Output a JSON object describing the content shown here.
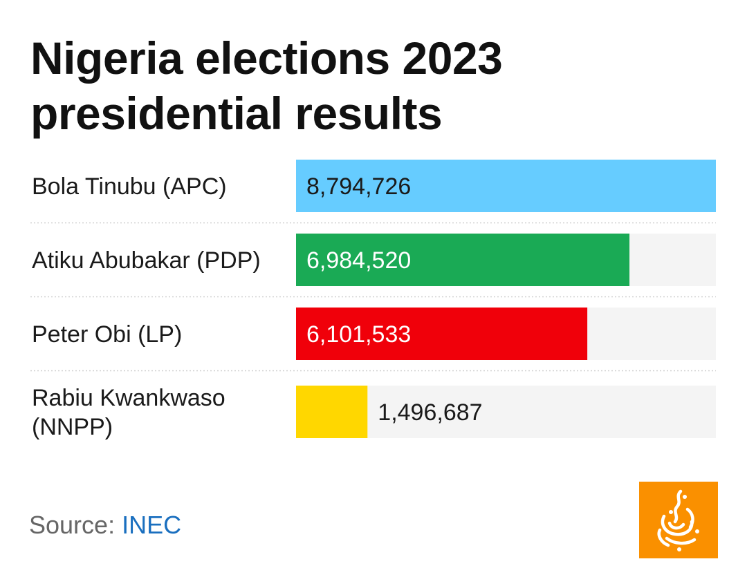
{
  "chart_data": {
    "type": "bar",
    "orientation": "horizontal",
    "title": "Nigeria elections 2023 presidential results",
    "categories": [
      [
        "Bola Tinubu (APC)"
      ],
      [
        "Atiku Abubakar (PDP)"
      ],
      [
        "Peter Obi (LP)"
      ],
      [
        "Rabiu Kwankwaso",
        "(NNPP)"
      ]
    ],
    "values": [
      8794726,
      6984520,
      6101533,
      1496687
    ],
    "value_labels": [
      "8,794,726",
      "6,984,520",
      "6,101,533",
      "1,496,687"
    ],
    "colors": [
      "#66ccff",
      "#1aaa55",
      "#f0000a",
      "#ffd700"
    ],
    "label_colors": [
      "#1a1a1a",
      "#ffffff",
      "#ffffff",
      "#1a1a1a"
    ],
    "xlim": [
      0,
      8794726
    ],
    "track_color": "#f4f4f4",
    "grid": false,
    "legend": "none"
  },
  "source": {
    "prefix": "Source: ",
    "name": "INEC"
  },
  "logo": {
    "icon": "al-jazeera-logo-icon",
    "color": "#fa9000"
  }
}
